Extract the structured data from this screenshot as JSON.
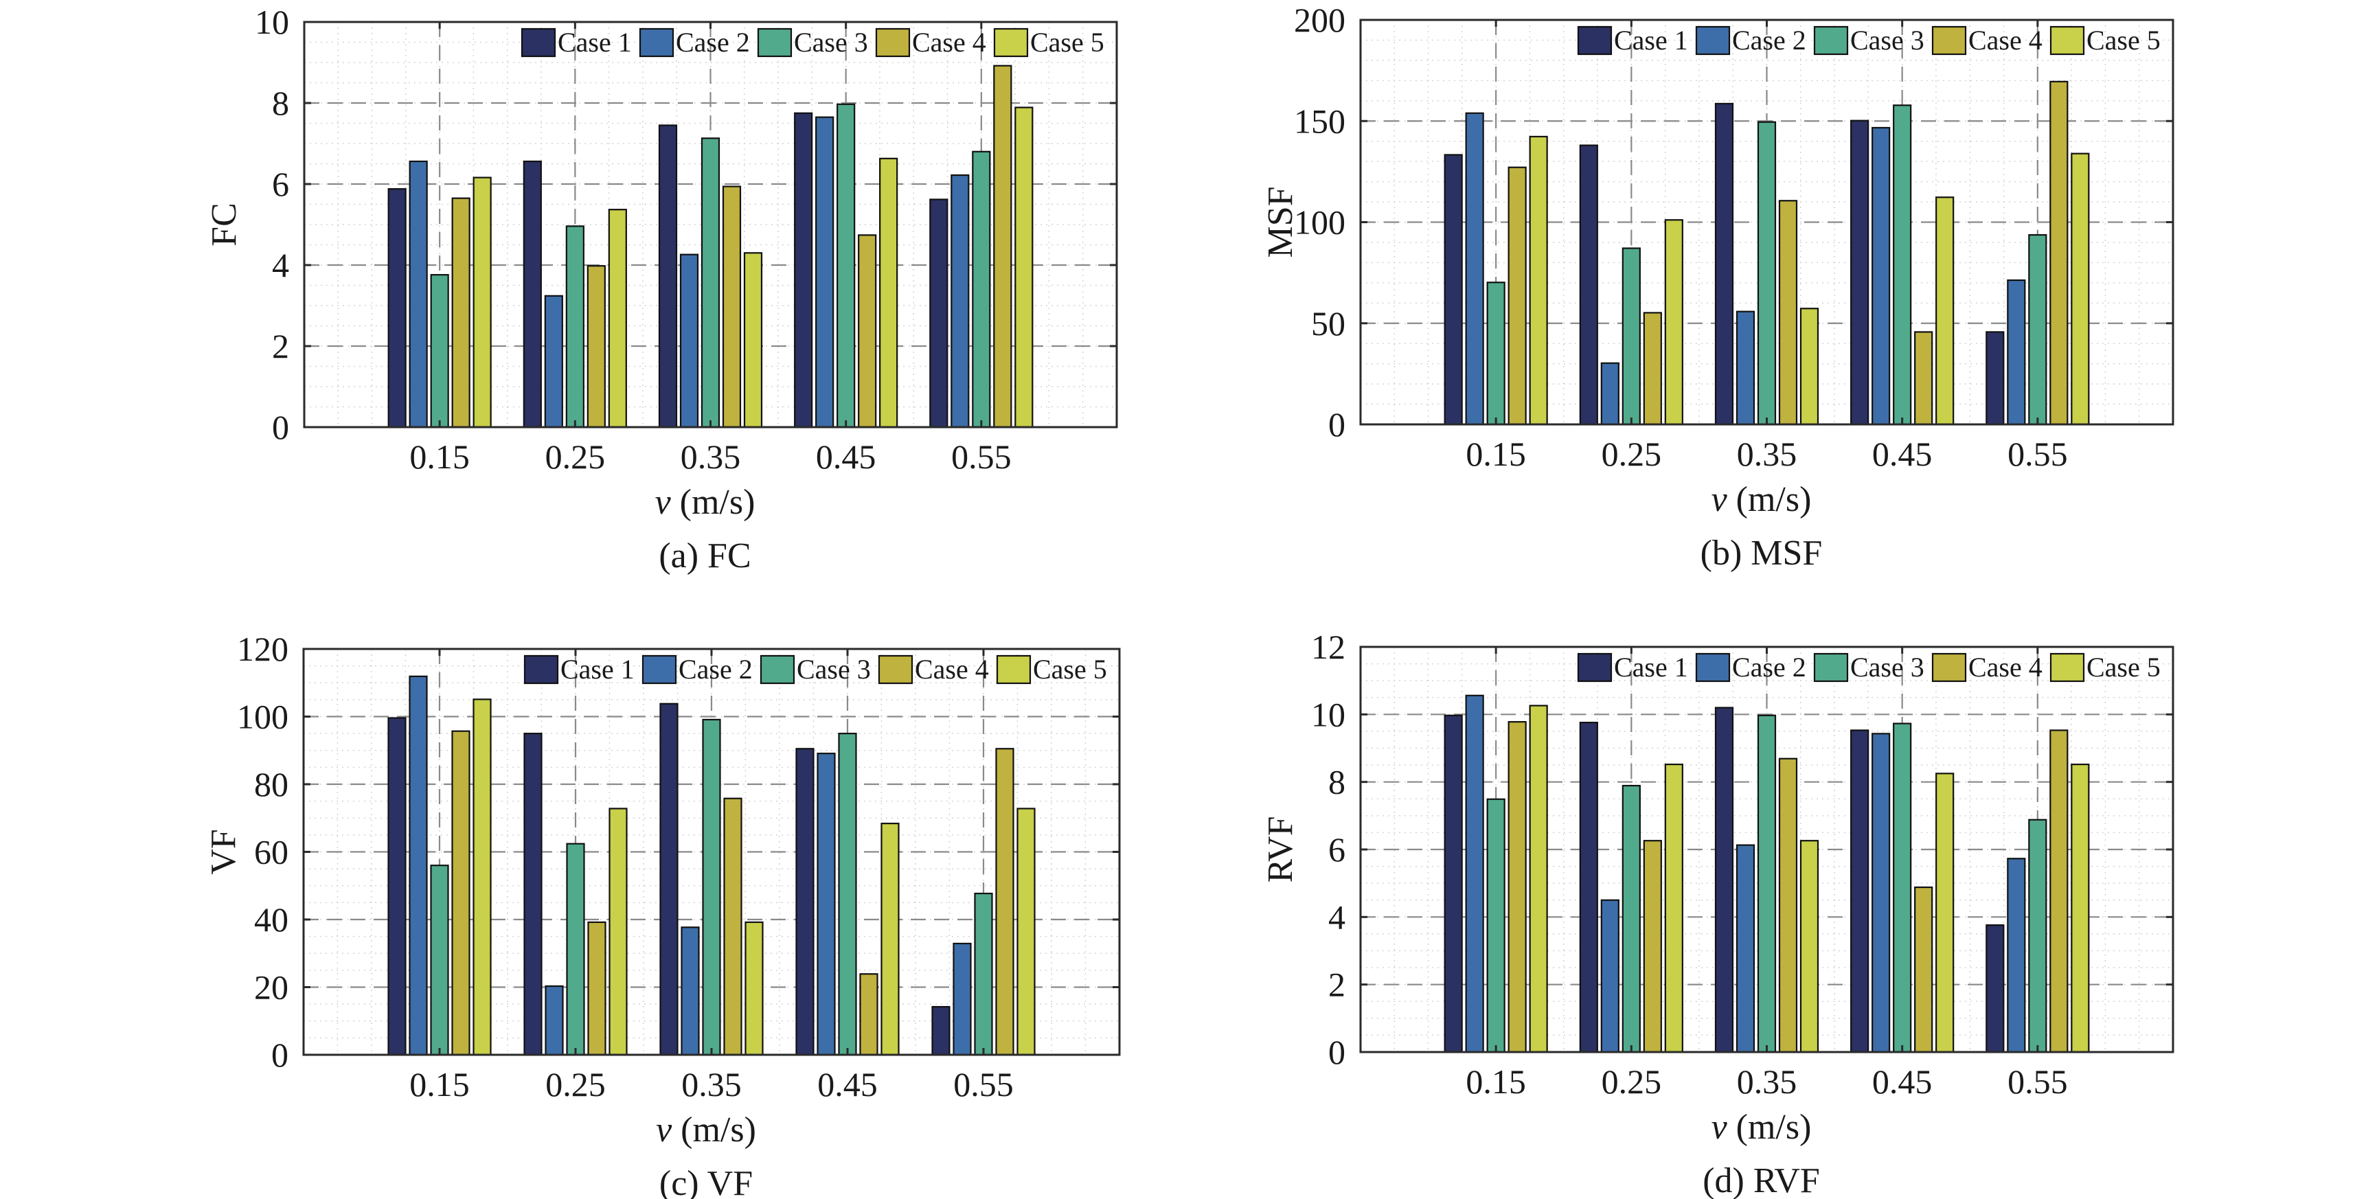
{
  "figure": {
    "legend_entries": [
      "Case 1",
      "Case 2",
      "Case 3",
      "Case 4",
      "Case 5"
    ],
    "series_colors": [
      "#2b3162",
      "#3e6ea9",
      "#52aa8d",
      "#bfb23f",
      "#c9d04a"
    ]
  },
  "chart_data": [
    {
      "id": "a",
      "type": "bar",
      "title": "(a) FC",
      "xlabel_var": "v",
      "xlabel_unit": " (m/s)",
      "ylabel": "FC",
      "categories": [
        "0.15",
        "0.25",
        "0.35",
        "0.45",
        "0.55"
      ],
      "x_values": [
        0.15,
        0.25,
        0.35,
        0.45,
        0.55
      ],
      "xlim": [
        0.05,
        0.65
      ],
      "ylim": [
        0,
        10
      ],
      "yticks": [
        0,
        2,
        4,
        6,
        8,
        10
      ],
      "minor_ystep": 0.5,
      "grid": true,
      "legend_position": "top-right",
      "series": [
        {
          "name": "Case 1",
          "values": [
            5.88,
            6.56,
            7.45,
            7.75,
            5.62
          ]
        },
        {
          "name": "Case 2",
          "values": [
            6.56,
            3.24,
            4.26,
            7.65,
            6.22
          ]
        },
        {
          "name": "Case 3",
          "values": [
            3.76,
            4.96,
            7.13,
            7.97,
            6.8
          ]
        },
        {
          "name": "Case 4",
          "values": [
            5.65,
            3.98,
            5.94,
            4.74,
            8.92
          ]
        },
        {
          "name": "Case 5",
          "values": [
            6.16,
            5.37,
            4.3,
            6.63,
            7.89
          ]
        }
      ]
    },
    {
      "id": "b",
      "type": "bar",
      "title": "(b) MSF",
      "xlabel_var": "v",
      "xlabel_unit": " (m/s)",
      "ylabel": "MSF",
      "categories": [
        "0.15",
        "0.25",
        "0.35",
        "0.45",
        "0.55"
      ],
      "x_values": [
        0.15,
        0.25,
        0.35,
        0.45,
        0.55
      ],
      "xlim": [
        0.05,
        0.65
      ],
      "ylim": [
        0,
        200
      ],
      "yticks": [
        0,
        50,
        100,
        150,
        200
      ],
      "minor_ystep": 10,
      "grid": true,
      "legend_position": "top-right",
      "series": [
        {
          "name": "Case 1",
          "values": [
            133.3,
            138.0,
            158.6,
            150.2,
            45.7
          ]
        },
        {
          "name": "Case 2",
          "values": [
            153.9,
            30.3,
            55.8,
            146.7,
            71.3
          ]
        },
        {
          "name": "Case 3",
          "values": [
            70.2,
            87.1,
            149.5,
            157.8,
            93.7
          ]
        },
        {
          "name": "Case 4",
          "values": [
            127.1,
            55.2,
            110.6,
            45.7,
            169.5
          ]
        },
        {
          "name": "Case 5",
          "values": [
            142.3,
            101.1,
            57.3,
            112.3,
            133.9
          ]
        }
      ]
    },
    {
      "id": "c",
      "type": "bar",
      "title": "(c) VF",
      "xlabel_var": "v",
      "xlabel_unit": " (m/s)",
      "ylabel": "VF",
      "categories": [
        "0.15",
        "0.25",
        "0.35",
        "0.45",
        "0.55"
      ],
      "x_values": [
        0.15,
        0.25,
        0.35,
        0.45,
        0.55
      ],
      "xlim": [
        0.05,
        0.65
      ],
      "ylim": [
        0,
        120
      ],
      "yticks": [
        0,
        20,
        40,
        60,
        80,
        100,
        120
      ],
      "minor_ystep": 5,
      "grid": true,
      "legend_position": "top-right",
      "series": [
        {
          "name": "Case 1",
          "values": [
            99.6,
            95.0,
            103.8,
            90.5,
            14.2
          ]
        },
        {
          "name": "Case 2",
          "values": [
            111.9,
            20.3,
            37.7,
            89.1,
            32.9
          ]
        },
        {
          "name": "Case 3",
          "values": [
            56.0,
            62.4,
            99.1,
            95.0,
            47.7
          ]
        },
        {
          "name": "Case 4",
          "values": [
            95.7,
            39.2,
            75.8,
            23.9,
            90.5
          ]
        },
        {
          "name": "Case 5",
          "values": [
            105.1,
            72.8,
            39.2,
            68.4,
            72.8
          ]
        }
      ]
    },
    {
      "id": "d",
      "type": "bar",
      "title": "(d) RVF",
      "xlabel_var": "v",
      "xlabel_unit": " (m/s)",
      "ylabel": "RVF",
      "categories": [
        "0.15",
        "0.25",
        "0.35",
        "0.45",
        "0.55"
      ],
      "x_values": [
        0.15,
        0.25,
        0.35,
        0.45,
        0.55
      ],
      "xlim": [
        0.05,
        0.65
      ],
      "ylim": [
        0,
        12
      ],
      "yticks": [
        0,
        2,
        4,
        6,
        8,
        10,
        12
      ],
      "minor_ystep": 0.5,
      "grid": true,
      "legend_position": "top-right",
      "series": [
        {
          "name": "Case 1",
          "values": [
            9.97,
            9.76,
            10.2,
            9.53,
            3.76
          ]
        },
        {
          "name": "Case 2",
          "values": [
            10.56,
            4.5,
            6.13,
            9.43,
            5.73
          ]
        },
        {
          "name": "Case 3",
          "values": [
            7.49,
            7.89,
            9.97,
            9.73,
            6.88
          ]
        },
        {
          "name": "Case 4",
          "values": [
            9.78,
            6.26,
            8.69,
            4.88,
            9.53
          ]
        },
        {
          "name": "Case 5",
          "values": [
            10.26,
            8.52,
            6.26,
            8.25,
            8.52
          ]
        }
      ]
    }
  ]
}
